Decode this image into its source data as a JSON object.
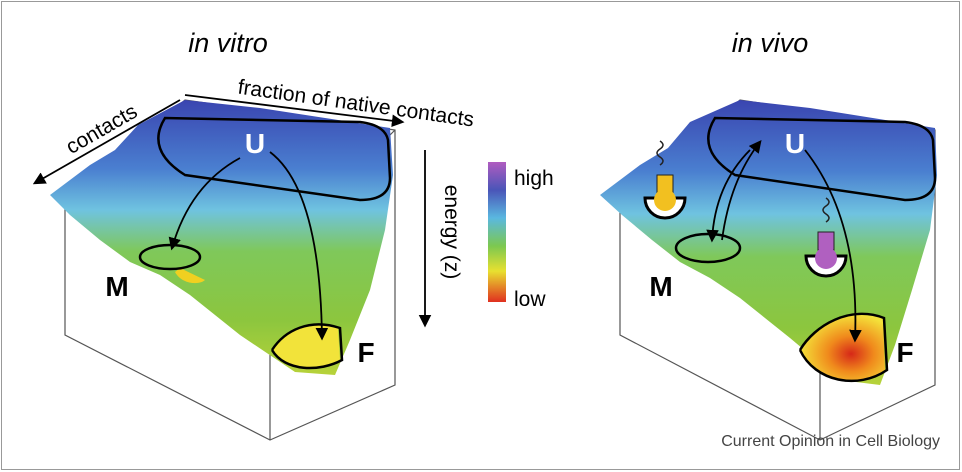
{
  "panels": [
    {
      "title": "in vitro",
      "axis_labels": [
        "contacts",
        "fraction of native contacts"
      ],
      "states": [
        "U",
        "M",
        "F"
      ]
    },
    {
      "title": "in vivo",
      "states": [
        "U",
        "M",
        "F"
      ]
    }
  ],
  "energy_axis": {
    "label": "energy (z)"
  },
  "color_scale": {
    "high": "high",
    "low": "low"
  },
  "footer": "Current Opinion in Cell Biology"
}
